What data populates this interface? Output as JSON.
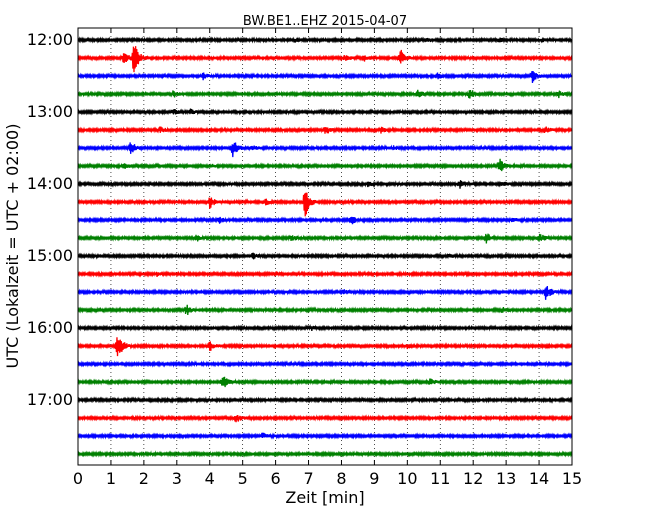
{
  "chart_data": {
    "type": "line",
    "title": "BW.BE1..EHZ 2015-04-07",
    "xlabel": "Zeit  [min]",
    "ylabel": "UTC (Lokalzeit = UTC + 02:00)",
    "xlim": [
      0,
      15
    ],
    "x_ticks": [
      0,
      1,
      2,
      3,
      4,
      5,
      6,
      7,
      8,
      9,
      10,
      11,
      12,
      13,
      14,
      15
    ],
    "x_tick_labels": [
      "0",
      "1",
      "2",
      "3",
      "4",
      "5",
      "6",
      "7",
      "8",
      "9",
      "10",
      "11",
      "12",
      "13",
      "14",
      "15"
    ],
    "y_tick_labels": [
      "12:00",
      "13:00",
      "14:00",
      "15:00",
      "16:00",
      "17:00"
    ],
    "y_tick_rows": [
      0,
      4,
      8,
      12,
      16,
      20
    ],
    "grid": true,
    "trace_colors": [
      "#000000",
      "#ff0000",
      "#0000ff",
      "#008000"
    ],
    "traces": [
      {
        "start": "12:00",
        "events": [
          [
            6.6,
            1.5
          ],
          [
            10.6,
            2
          ],
          [
            12.8,
            2
          ],
          [
            14.1,
            1.5
          ]
        ]
      },
      {
        "start": "12:15",
        "events": [
          [
            1.7,
            18
          ],
          [
            1.4,
            6
          ],
          [
            8.1,
            3
          ],
          [
            9.8,
            8
          ],
          [
            8.7,
            3
          ]
        ]
      },
      {
        "start": "12:30",
        "events": [
          [
            3.8,
            3
          ],
          [
            10.9,
            3
          ],
          [
            13.8,
            6
          ]
        ]
      },
      {
        "start": "12:45",
        "events": [
          [
            2.9,
            3
          ],
          [
            10.3,
            4
          ],
          [
            11.9,
            5
          ],
          [
            14.6,
            3
          ]
        ]
      },
      {
        "start": "13:00",
        "events": [
          [
            2.9,
            3
          ],
          [
            3.4,
            3
          ]
        ]
      },
      {
        "start": "13:15",
        "events": [
          [
            2.5,
            3
          ],
          [
            7.5,
            5
          ],
          [
            9.2,
            3
          ],
          [
            14.2,
            3
          ]
        ]
      },
      {
        "start": "13:30",
        "events": [
          [
            1.6,
            7
          ],
          [
            4.7,
            9
          ],
          [
            5.3,
            2
          ],
          [
            9.6,
            2
          ]
        ]
      },
      {
        "start": "13:45",
        "events": [
          [
            1.4,
            3
          ],
          [
            4.1,
            2
          ],
          [
            12.8,
            7
          ]
        ]
      },
      {
        "start": "14:00",
        "events": [
          [
            8.8,
            2
          ],
          [
            11.6,
            5
          ],
          [
            12.9,
            2
          ]
        ]
      },
      {
        "start": "14:15",
        "events": [
          [
            4.0,
            6
          ],
          [
            6.9,
            16
          ],
          [
            5.7,
            3
          ]
        ]
      },
      {
        "start": "14:30",
        "events": [
          [
            4.3,
            3
          ],
          [
            8.3,
            4
          ],
          [
            13.2,
            2
          ]
        ]
      },
      {
        "start": "14:45",
        "events": [
          [
            3.6,
            3
          ],
          [
            6.5,
            3
          ],
          [
            12.4,
            5
          ],
          [
            14.0,
            5
          ]
        ]
      },
      {
        "start": "15:00",
        "events": [
          [
            5.3,
            3
          ],
          [
            11.3,
            2
          ]
        ]
      },
      {
        "start": "15:15",
        "events": [
          [
            2.4,
            2
          ],
          [
            6.0,
            2
          ]
        ]
      },
      {
        "start": "15:30",
        "events": [
          [
            8.1,
            2
          ],
          [
            14.2,
            9
          ]
        ]
      },
      {
        "start": "15:45",
        "events": [
          [
            3.3,
            5
          ],
          [
            12.9,
            3
          ]
        ]
      },
      {
        "start": "16:00",
        "events": [
          [
            7.1,
            2
          ]
        ]
      },
      {
        "start": "16:15",
        "events": [
          [
            1.2,
            16
          ],
          [
            4.0,
            5
          ],
          [
            10.0,
            2
          ]
        ]
      },
      {
        "start": "16:30",
        "events": []
      },
      {
        "start": "16:45",
        "events": [
          [
            4.4,
            7
          ],
          [
            10.7,
            3
          ]
        ]
      },
      {
        "start": "17:00",
        "events": []
      },
      {
        "start": "17:15",
        "events": [
          [
            4.8,
            5
          ]
        ]
      },
      {
        "start": "17:30",
        "events": [
          [
            5.6,
            3
          ]
        ]
      },
      {
        "start": "17:45",
        "events": []
      }
    ]
  }
}
